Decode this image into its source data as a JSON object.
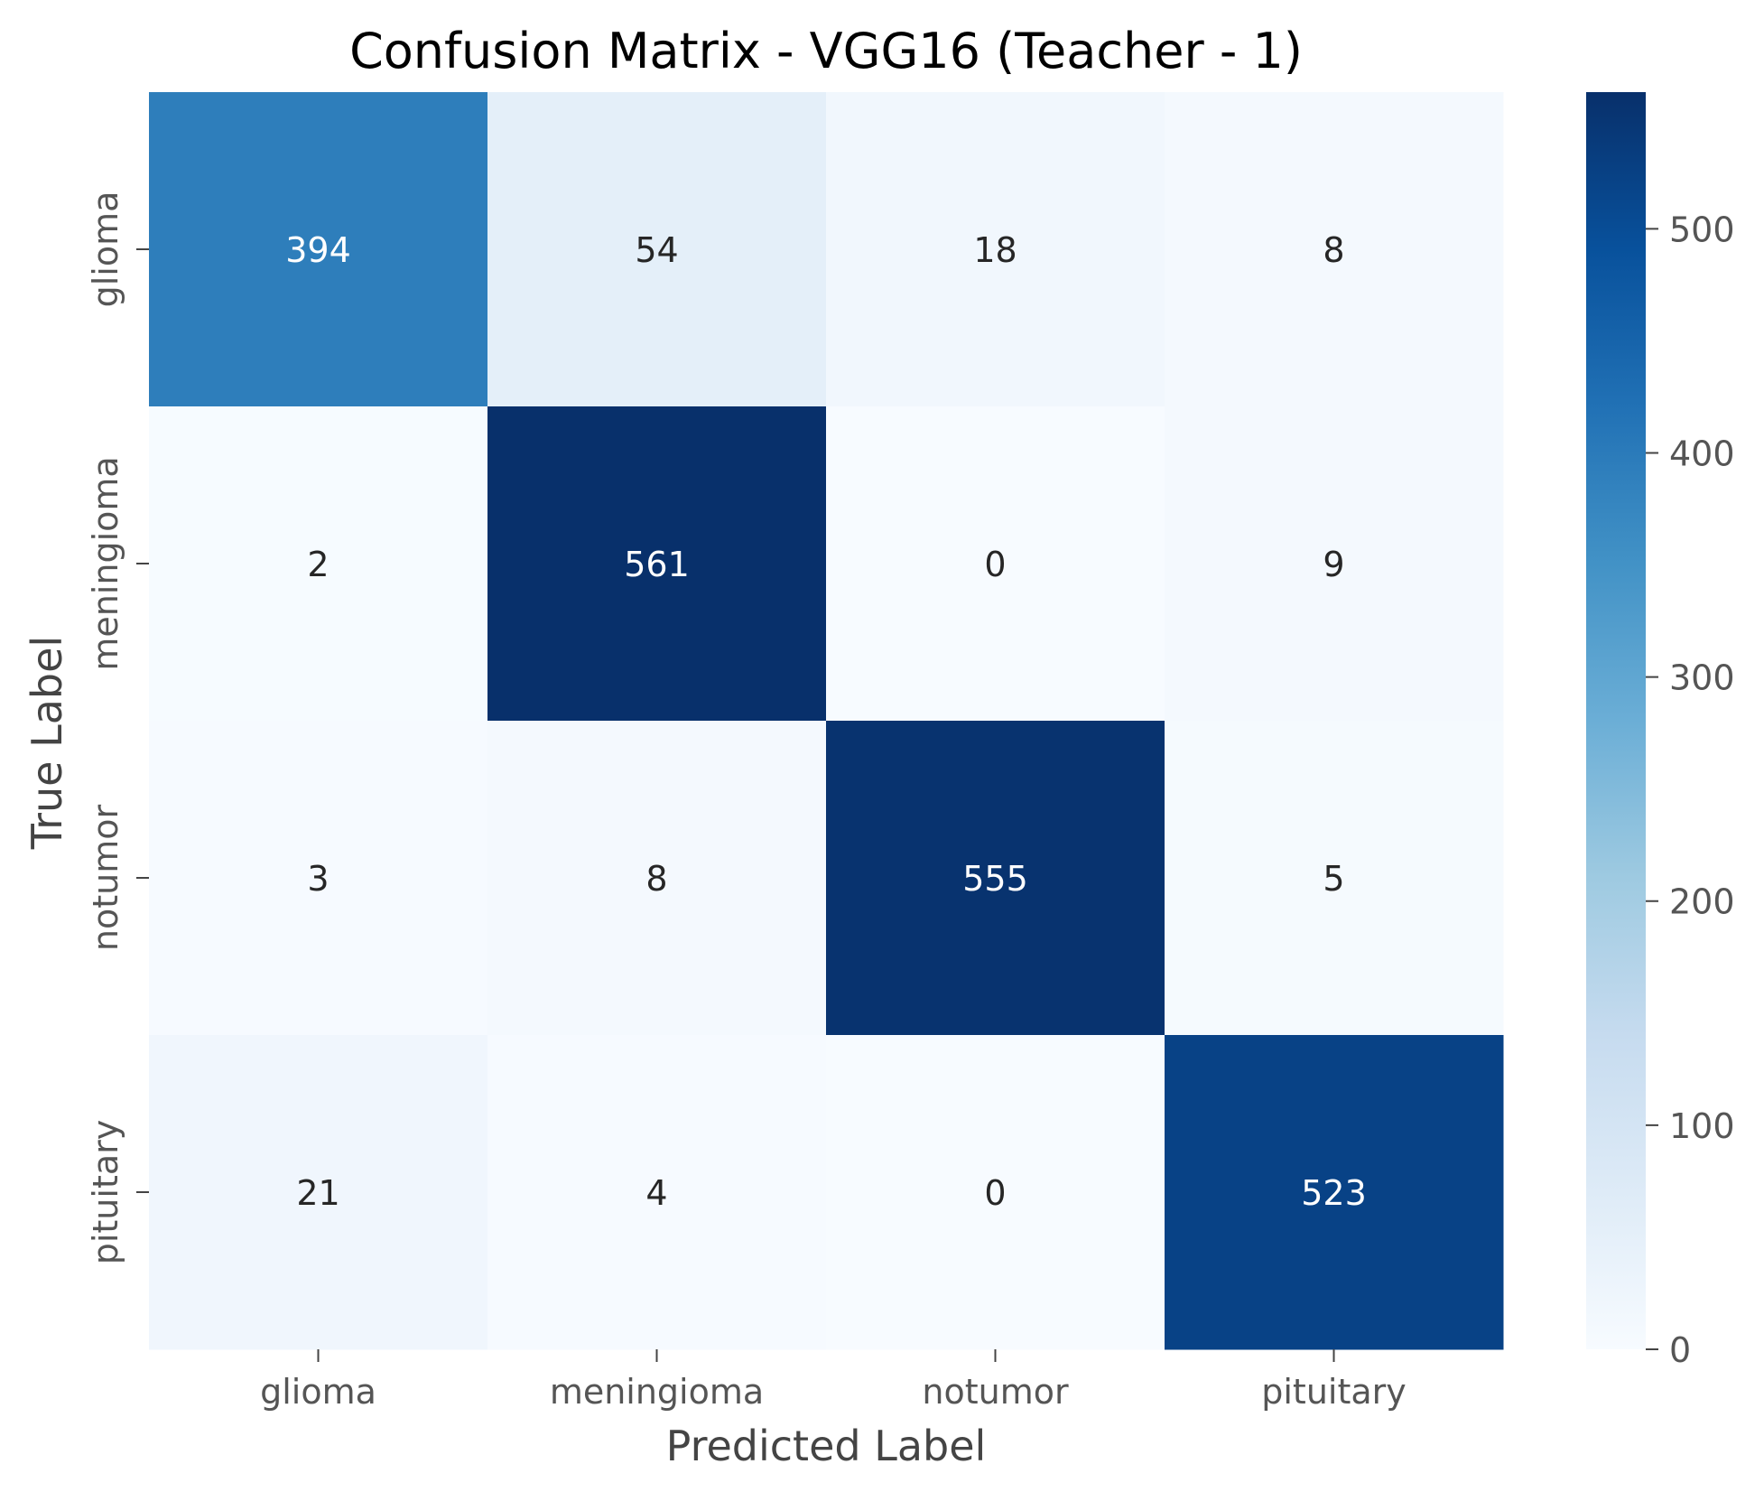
{
  "chart_data": {
    "type": "heatmap",
    "title": "Confusion Matrix - VGG16 (Teacher - 1)",
    "xlabel": "Predicted Label",
    "ylabel": "True Label",
    "x_categories": [
      "glioma",
      "meningioma",
      "notumor",
      "pituitary"
    ],
    "y_categories": [
      "glioma",
      "meningioma",
      "notumor",
      "pituitary"
    ],
    "values": [
      [
        394,
        54,
        18,
        8
      ],
      [
        2,
        561,
        0,
        9
      ],
      [
        3,
        8,
        555,
        5
      ],
      [
        21,
        4,
        0,
        523
      ]
    ],
    "colorbar": {
      "min": 0,
      "max": 561,
      "ticks": [
        "0",
        "100",
        "200",
        "300",
        "400",
        "500"
      ],
      "colormap": "Blues"
    },
    "grid": false
  }
}
